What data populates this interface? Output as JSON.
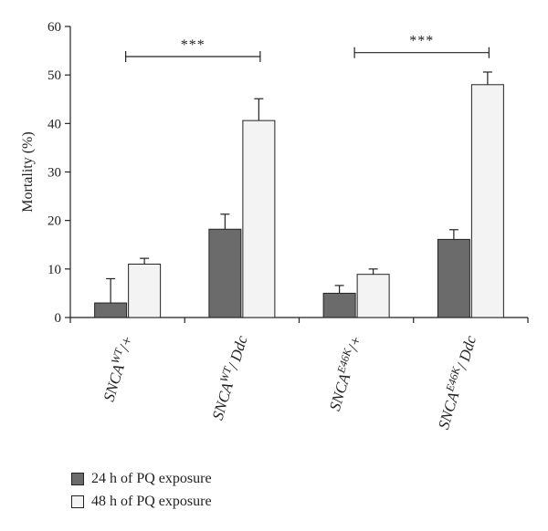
{
  "chart_data": {
    "type": "bar",
    "categories": [
      {
        "base": "SNCA",
        "sup": "WT",
        "suffix": "/+"
      },
      {
        "base": "SNCA",
        "sup": "WT",
        "suffix": "/ Ddc"
      },
      {
        "base": "SNCA",
        "sup": "E46K",
        "suffix": "/+"
      },
      {
        "base": "SNCA",
        "sup": "E46K",
        "suffix": "/ Ddc"
      }
    ],
    "series": [
      {
        "name": "24 h of PQ exposure",
        "color": "#6b6b6b",
        "values": [
          3,
          18.2,
          5,
          16.1
        ],
        "errors": [
          5,
          3.1,
          1.6,
          2
        ]
      },
      {
        "name": "48 h of PQ exposure",
        "color": "#f3f3f3",
        "values": [
          11,
          40.6,
          8.9,
          48
        ],
        "errors": [
          1.2,
          4.5,
          1.1,
          2.6
        ]
      }
    ],
    "ylabel": "Mortality (%)",
    "ylim": [
      0,
      60
    ],
    "yticks": [
      0,
      10,
      20,
      30,
      40,
      50,
      60
    ],
    "significance": [
      {
        "from_category": 0,
        "to_category": 1,
        "level": 53.8,
        "label": "***"
      },
      {
        "from_category": 2,
        "to_category": 3,
        "level": 54.6,
        "label": "***"
      }
    ]
  }
}
